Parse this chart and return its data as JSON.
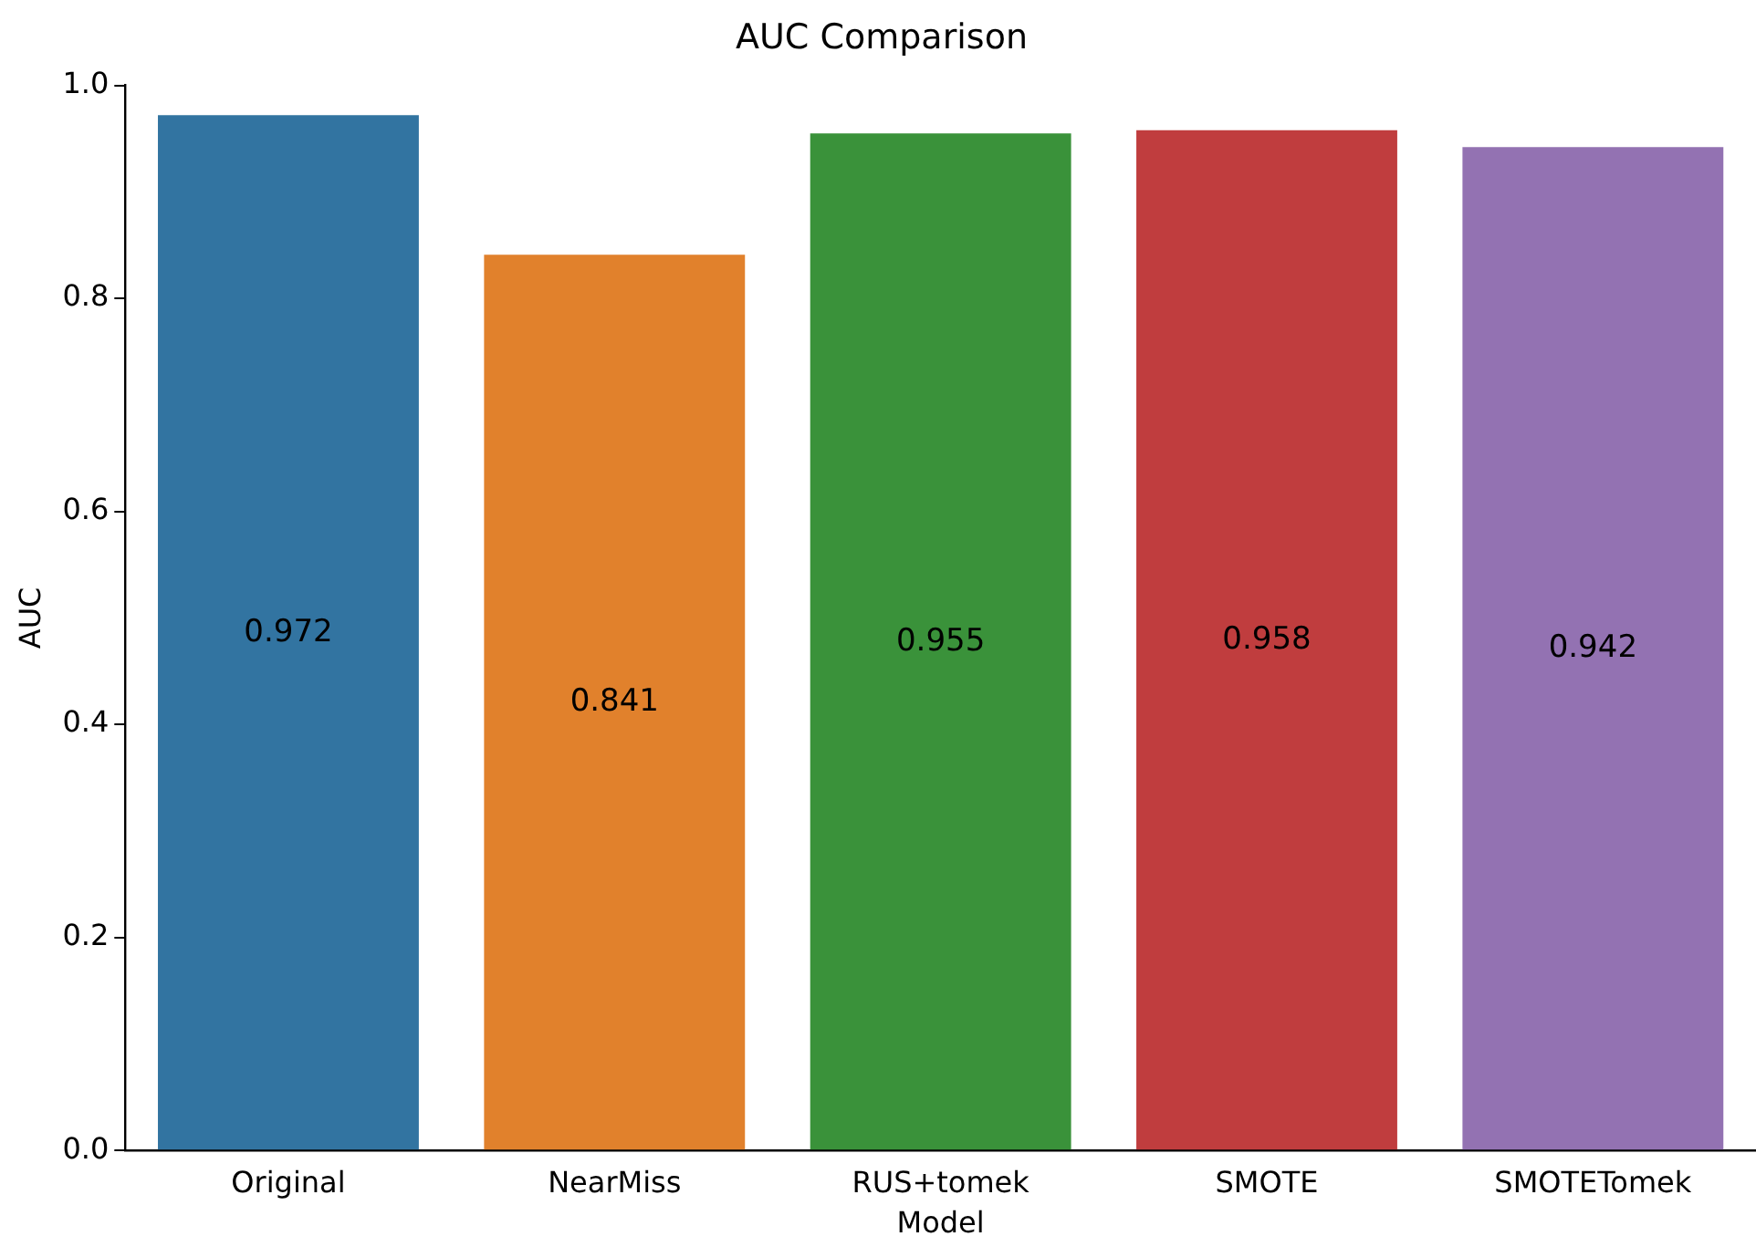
{
  "chart_data": {
    "type": "bar",
    "title": "AUC Comparison",
    "xlabel": "Model",
    "ylabel": "AUC",
    "categories": [
      "Original",
      "NearMiss",
      "RUS+tomek",
      "SMOTE",
      "SMOTETomek"
    ],
    "values": [
      0.972,
      0.841,
      0.955,
      0.958,
      0.942
    ],
    "colors": [
      "#3274a1",
      "#e1812c",
      "#3a923a",
      "#c03d3e",
      "#9372b2"
    ],
    "ylim": [
      0,
      1
    ],
    "yticks": [
      {
        "value": 0,
        "label": "0.0"
      },
      0.2,
      0.4,
      0.6,
      0.8,
      {
        "value": 1,
        "label": "1.0"
      }
    ],
    "data_labels": true,
    "grid": false,
    "legend": false
  }
}
